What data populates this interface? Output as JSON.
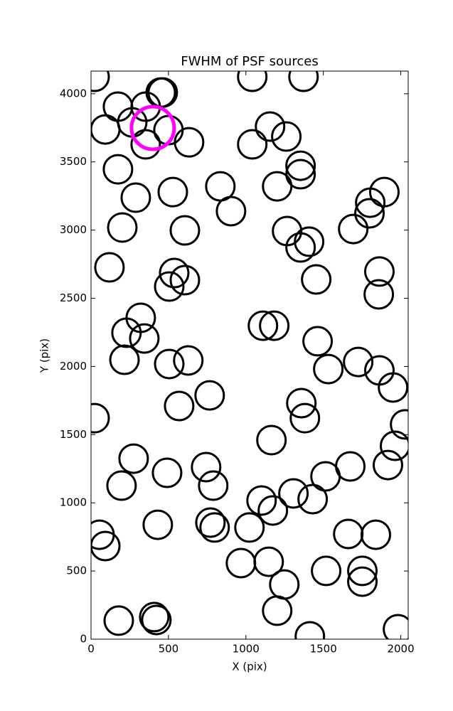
{
  "chart_data": {
    "type": "scatter",
    "title": "FWHM of PSF sources",
    "x_label": "X (pix)",
    "y_label": "Y (pix)",
    "xlim": [
      0,
      2048
    ],
    "ylim": [
      0,
      4166
    ],
    "xticks": [
      0,
      500,
      1000,
      1500,
      2000
    ],
    "yticks": [
      0,
      500,
      1000,
      1500,
      2000,
      2500,
      3000,
      3500,
      4000
    ],
    "series": [
      {
        "color": "#000000",
        "marker": "open-circle",
        "x": [
          23,
          1041,
          1372,
          450,
          174,
          266,
          92,
          353,
          463,
          353,
          500,
          633,
          1041,
          1156,
          1261,
          1353,
          1353,
          1202,
          835,
          528,
          289,
          174,
          202,
          606,
          904,
          1266,
          1353,
          1408,
          1693,
          1803,
          1798,
          1894,
          1862,
          1858,
          1454,
          119,
          537,
          606,
          505,
          321,
          229,
          344,
          216,
          505,
          628,
          1110,
          1183,
          1463,
          1532,
          1725,
          1862,
          1950,
          23,
          569,
          766,
          1358,
          1381,
          1165,
          2028,
          1963,
          1917,
          275,
          491,
          743,
          789,
          197,
          1514,
          1674,
          1101,
          1307,
          1431,
          1174,
          1023,
          771,
          798,
          431,
          55,
          92,
          1661,
          1839,
          968,
          1147,
          1248,
          1202,
          1518,
          1752,
          1752,
          179,
          408,
          422,
          1413,
          1982
        ],
        "values": [
          4124,
          4124,
          4124,
          4009,
          3905,
          3790,
          3738,
          3905,
          4009,
          3629,
          3733,
          3644,
          3629,
          3759,
          3686,
          3472,
          3410,
          3321,
          3321,
          3279,
          3238,
          3446,
          3019,
          2998,
          3139,
          2993,
          2873,
          2915,
          3008,
          3201,
          3123,
          3279,
          2696,
          2529,
          2638,
          2727,
          2685,
          2633,
          2586,
          2357,
          2247,
          2205,
          2049,
          2018,
          2044,
          2299,
          2299,
          2185,
          1981,
          2033,
          1971,
          1846,
          1621,
          1710,
          1788,
          1731,
          1621,
          1460,
          1575,
          1418,
          1277,
          1324,
          1220,
          1262,
          1126,
          1126,
          1194,
          1267,
          1017,
          1069,
          1027,
          944,
          819,
          855,
          819,
          839,
          766,
          683,
          772,
          766,
          558,
          568,
          401,
          209,
          501,
          501,
          422,
          136,
          162,
          141,
          21,
          73
        ]
      },
      {
        "color": "#ff00ff",
        "marker": "open-circle-large",
        "x": [
          399
        ],
        "values": [
          3749
        ]
      }
    ]
  }
}
